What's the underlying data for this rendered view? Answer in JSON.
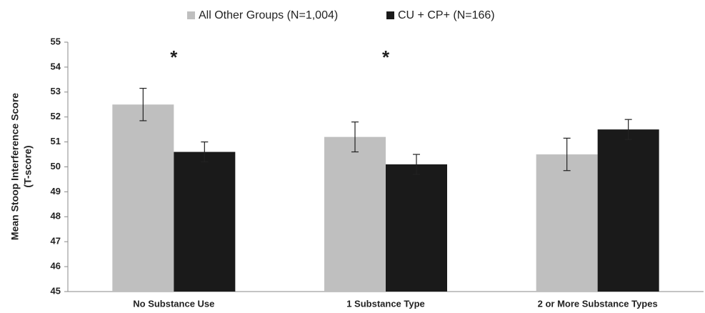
{
  "chart_data": {
    "type": "bar",
    "ylabel": [
      "Mean Stoop Interference Score",
      "(T-score)"
    ],
    "categories": [
      "No Substance Use",
      "1 Substance Type",
      "2 or More Substance Types"
    ],
    "series": [
      {
        "name": "All Other Groups (N=1,004)",
        "color": "#bfbfbf",
        "values": [
          52.5,
          51.2,
          50.5
        ],
        "errors": [
          0.65,
          0.6,
          0.65
        ]
      },
      {
        "name": "CU + CP+ (N=166)",
        "color": "#1a1a1a",
        "values": [
          50.6,
          50.1,
          51.5
        ],
        "errors": [
          0.4,
          0.4,
          0.4
        ]
      }
    ],
    "annotations": [
      {
        "text": "*",
        "category": 0
      },
      {
        "text": "*",
        "category": 1
      }
    ],
    "ylim": [
      45,
      55
    ],
    "yticks": [
      45,
      46,
      47,
      48,
      49,
      50,
      51,
      52,
      53,
      54,
      55
    ],
    "grid": false,
    "legend": "top"
  }
}
